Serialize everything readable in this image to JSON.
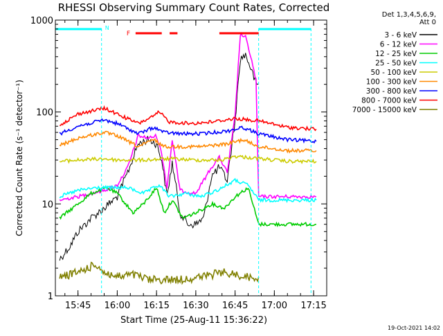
{
  "chart_data": {
    "type": "line",
    "title": "RHESSI Observing Summary Count Rates, Corrected",
    "xlabel": "Start Time (25-Aug-11 15:36:22)",
    "ylabel": "Corrected Count Rate (s⁻¹ detector⁻¹)",
    "yscale": "log",
    "ylim": [
      1,
      1000
    ],
    "xlim_minutes": [
      "15:36:22",
      "17:20:00"
    ],
    "x_ticks": [
      "15:45",
      "16:00",
      "16:15",
      "16:30",
      "16:45",
      "17:00",
      "17:15"
    ],
    "y_ticks": [
      "1",
      "10",
      "100",
      "1000"
    ],
    "legend_header": [
      "Det 1,3,4,5,6,9,",
      "Att 0"
    ],
    "legend_placement": "right",
    "timestamp": "19-Oct-2021 14:02",
    "annotations": {
      "night_marker": "N",
      "flare_marker": "F",
      "night_boundaries": [
        "15:54",
        "16:54",
        "17:14"
      ],
      "saa_color": "#00ffff",
      "flare_color": "#ff0000",
      "flare_intervals": [
        [
          "16:07",
          "16:17"
        ],
        [
          "16:20",
          "16:23"
        ],
        [
          "16:39",
          "16:54"
        ]
      ]
    },
    "series": [
      {
        "name": "3 - 6 keV",
        "color": "#000000",
        "x": [
          "15:38",
          "15:42",
          "15:45",
          "15:50",
          "15:55",
          "16:00",
          "16:04",
          "16:08",
          "16:12",
          "16:15",
          "16:17",
          "16:19",
          "16:21",
          "16:24",
          "16:27",
          "16:30",
          "16:33",
          "16:36",
          "16:39",
          "16:42",
          "16:45",
          "16:47",
          "16:49",
          "16:51",
          "16:53",
          "16:54"
        ],
        "y": [
          2.5,
          3.5,
          5,
          7,
          9,
          12,
          22,
          45,
          50,
          45,
          30,
          12,
          28,
          8,
          6,
          6,
          7,
          20,
          25,
          18,
          80,
          380,
          420,
          300,
          200,
          200
        ]
      },
      {
        "name": "6 - 12 keV",
        "color": "#ff00ff",
        "x": [
          "15:38",
          "15:45",
          "15:55",
          "16:00",
          "16:04",
          "16:08",
          "16:12",
          "16:15",
          "16:17",
          "16:19",
          "16:21",
          "16:24",
          "16:30",
          "16:36",
          "16:39",
          "16:42",
          "16:45",
          "16:47",
          "16:49",
          "16:51",
          "16:53",
          "16:54",
          "17:00",
          "17:16"
        ],
        "y": [
          11,
          12,
          14,
          16,
          25,
          55,
          52,
          55,
          35,
          15,
          50,
          14,
          13,
          25,
          32,
          22,
          90,
          700,
          650,
          400,
          220,
          12,
          12,
          12
        ]
      },
      {
        "name": "12 - 25 keV",
        "color": "#00cc00",
        "x": [
          "15:38",
          "15:45",
          "15:50",
          "15:56",
          "16:00",
          "16:06",
          "16:10",
          "16:15",
          "16:18",
          "16:21",
          "16:25",
          "16:30",
          "16:36",
          "16:41",
          "16:45",
          "16:50",
          "16:54",
          "17:00",
          "17:16"
        ],
        "y": [
          7,
          10,
          13,
          15,
          13,
          8,
          10,
          15,
          8,
          11,
          7,
          8,
          10,
          9,
          12,
          15,
          6,
          6,
          6
        ]
      },
      {
        "name": "25 - 50 keV",
        "color": "#00ffff",
        "x": [
          "15:38",
          "15:45",
          "15:52",
          "15:58",
          "16:04",
          "16:10",
          "16:16",
          "16:20",
          "16:26",
          "16:32",
          "16:38",
          "16:45",
          "16:50",
          "16:54",
          "17:00",
          "17:16"
        ],
        "y": [
          12,
          14,
          15,
          15,
          15,
          13,
          16,
          12,
          13,
          12,
          14,
          18,
          16,
          11,
          11,
          11
        ]
      },
      {
        "name": "50 - 100 keV",
        "color": "#cccc00",
        "x": [
          "15:38",
          "15:45",
          "15:55",
          "16:00",
          "16:10",
          "16:20",
          "16:30",
          "16:40",
          "16:45",
          "16:55",
          "17:05",
          "17:16"
        ],
        "y": [
          29,
          30,
          31,
          30,
          30,
          31,
          30,
          30,
          33,
          31,
          29,
          29
        ]
      },
      {
        "name": "100 - 300 keV",
        "color": "#ff8800",
        "x": [
          "15:38",
          "15:45",
          "15:55",
          "16:00",
          "16:08",
          "16:14",
          "16:18",
          "16:24",
          "16:32",
          "16:42",
          "16:48",
          "16:54",
          "17:05",
          "17:16"
        ],
        "y": [
          43,
          52,
          60,
          55,
          42,
          50,
          42,
          42,
          42,
          45,
          50,
          42,
          38,
          38
        ]
      },
      {
        "name": "300 - 800 keV",
        "color": "#0000ff",
        "x": [
          "15:38",
          "15:45",
          "15:55",
          "16:00",
          "16:08",
          "16:14",
          "16:18",
          "16:24",
          "16:32",
          "16:42",
          "16:48",
          "16:54",
          "17:05",
          "17:16"
        ],
        "y": [
          58,
          70,
          82,
          75,
          58,
          68,
          60,
          58,
          58,
          62,
          68,
          58,
          50,
          48
        ]
      },
      {
        "name": "800 - 7000 keV",
        "color": "#ff0000",
        "x": [
          "15:38",
          "15:45",
          "15:55",
          "16:00",
          "16:08",
          "16:14",
          "16:16",
          "16:20",
          "16:28",
          "16:36",
          "16:45",
          "16:54",
          "17:05",
          "17:16"
        ],
        "y": [
          72,
          95,
          110,
          95,
          75,
          90,
          100,
          78,
          75,
          78,
          85,
          80,
          68,
          65
        ]
      },
      {
        "name": "7000 - 15000 keV",
        "color": "#808000",
        "x": [
          "15:38",
          "15:45",
          "15:52",
          "15:55",
          "16:00",
          "16:06",
          "16:12",
          "16:18",
          "16:24",
          "16:32",
          "16:40",
          "16:46",
          "16:50",
          "16:54"
        ],
        "y": [
          1.6,
          1.8,
          2.2,
          1.8,
          1.6,
          1.7,
          1.5,
          1.5,
          1.5,
          1.6,
          1.8,
          1.7,
          1.6,
          1.6
        ]
      }
    ]
  }
}
